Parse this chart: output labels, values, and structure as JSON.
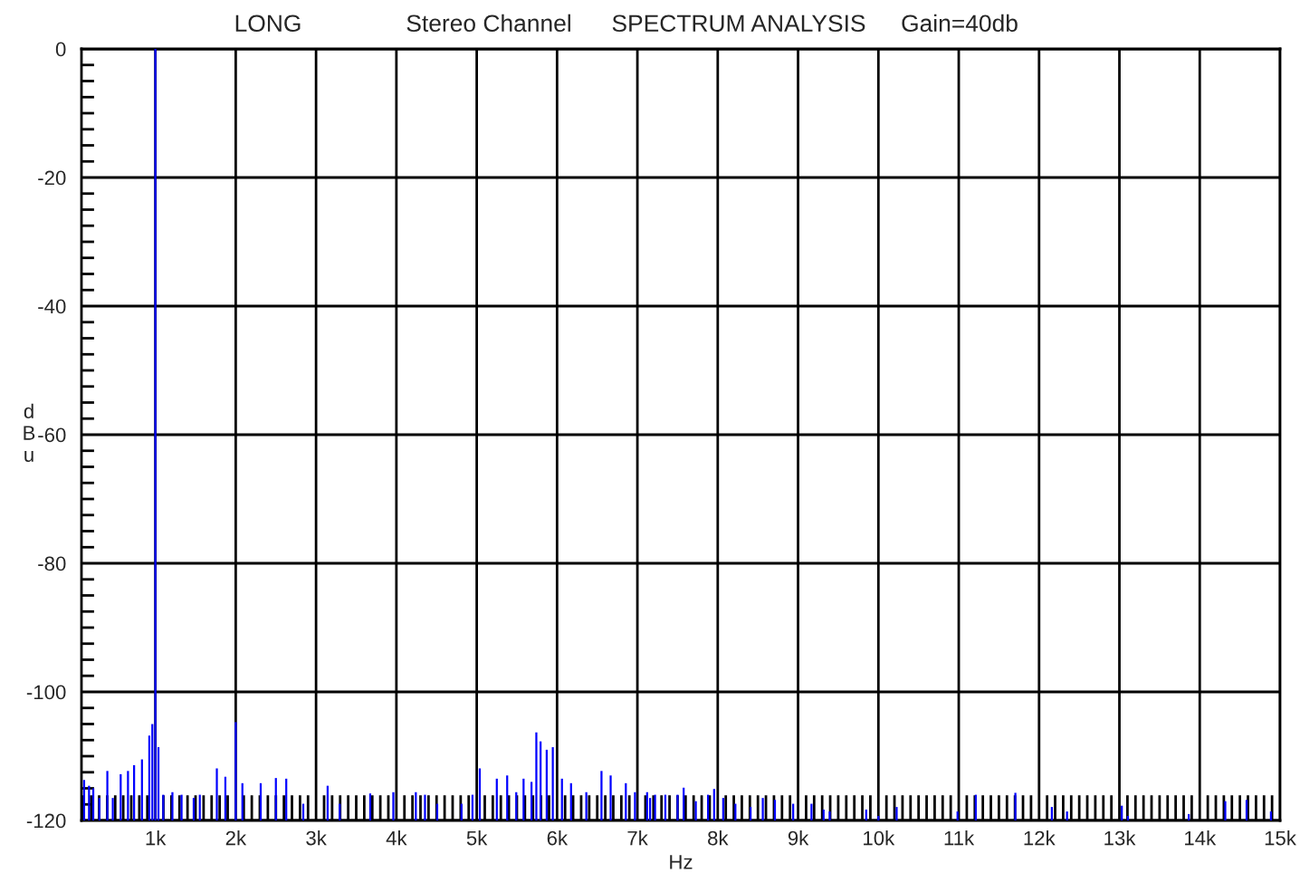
{
  "chart_data": {
    "type": "bar",
    "title": "SPECTRUM ANALYSIS",
    "annotations": [
      "LONG",
      "Stereo Channel",
      "Gain=40db"
    ],
    "xlabel": "Hz",
    "ylabel": "dBu",
    "x": [
      113,
      174,
      227,
      303,
      402,
      470,
      568,
      659,
      735,
      833,
      924,
      962,
      1000,
      1038,
      1098,
      1212,
      1326,
      1477,
      1553,
      1765,
      1871,
      2000,
      2083,
      2311,
      2500,
      2629,
      2841,
      3144,
      3295,
      3674,
      3962,
      4242,
      4356,
      4508,
      4811,
      4947,
      5038,
      5250,
      5379,
      5492,
      5583,
      5682,
      5742,
      5795,
      5871,
      5947,
      6061,
      6174,
      6364,
      6553,
      6667,
      6856,
      6970,
      7121,
      7158,
      7220,
      7348,
      7500,
      7576,
      7727,
      7879,
      7955,
      8068,
      8220,
      8409,
      8561,
      8712,
      8939,
      9167,
      9318,
      9394,
      9848,
      10000,
      10227,
      10985,
      11212,
      11705,
      12159,
      12348,
      13030,
      13106,
      13864,
      14318,
      14583,
      14886
    ],
    "base": [
      -120,
      -120,
      -120,
      -120,
      -120,
      -120,
      -120,
      -120,
      -120,
      -120,
      -120,
      -120,
      -120,
      -120,
      -120,
      -120,
      -120,
      -120,
      -120,
      -120,
      -120,
      -120,
      -120,
      -120,
      -120,
      -120,
      -120,
      -120,
      -120,
      -120,
      -120,
      -120,
      -120,
      -120,
      -120,
      -120,
      -120,
      -120,
      -120,
      -120,
      -120,
      -120,
      -120,
      -120,
      -120,
      -120,
      -120,
      -120,
      -120,
      -120,
      -120,
      -120,
      -120,
      -120,
      -120,
      -120,
      -120,
      -120,
      -120,
      -120,
      -120,
      -120,
      -120,
      -120,
      -120,
      -120,
      -120,
      -120,
      -120,
      -120,
      -120,
      -120,
      -120,
      -120,
      -120,
      -120,
      -120,
      -120,
      -120,
      -120,
      -120,
      -120,
      -120,
      -120,
      -120
    ],
    "values": [
      6.3,
      5.4,
      5,
      3.5,
      7.7,
      3.5,
      7.2,
      7.7,
      8.6,
      9.5,
      13.2,
      15,
      120,
      11.4,
      4,
      4.4,
      4,
      3.5,
      4,
      8.1,
      6.8,
      15.3,
      5.8,
      5.8,
      6.6,
      6.5,
      2.6,
      5.4,
      2.6,
      4.2,
      4.4,
      4.4,
      4,
      2.6,
      2.6,
      4,
      8.1,
      6.5,
      7,
      4.4,
      6.5,
      6,
      13.7,
      12.3,
      11,
      11.4,
      6.5,
      5.8,
      4.4,
      7.7,
      7,
      5.8,
      4.4,
      4.4,
      3.5,
      4,
      4,
      4,
      5.1,
      3,
      4,
      4.9,
      3.5,
      2.6,
      2.1,
      3.5,
      3.2,
      2.6,
      2.6,
      1.7,
      1.4,
      1.7,
      0.7,
      2.1,
      1.4,
      4,
      4.3,
      2.1,
      1.4,
      2.3,
      0.7,
      1,
      3,
      3.2,
      1.4
    ],
    "color": "#0000ff",
    "xlim": [
      80,
      15000
    ],
    "xticks": [
      {
        "value": 100,
        "label": null
      },
      {
        "value": 200,
        "label": null
      },
      {
        "value": 300,
        "label": null
      },
      {
        "value": 400,
        "label": null
      },
      {
        "value": 500,
        "label": null
      },
      {
        "value": 600,
        "label": null
      },
      {
        "value": 700,
        "label": null
      },
      {
        "value": 800,
        "label": null
      },
      {
        "value": 900,
        "label": null
      },
      {
        "value": 1000,
        "label": "1k"
      },
      {
        "value": 1100,
        "label": null
      },
      {
        "value": 1200,
        "label": null
      },
      {
        "value": 1300,
        "label": null
      },
      {
        "value": 1400,
        "label": null
      },
      {
        "value": 1500,
        "label": null
      },
      {
        "value": 1600,
        "label": null
      },
      {
        "value": 1700,
        "label": null
      },
      {
        "value": 1800,
        "label": null
      },
      {
        "value": 1900,
        "label": null
      },
      {
        "value": 2000,
        "label": "2k"
      },
      {
        "value": 2100,
        "label": null
      },
      {
        "value": 2200,
        "label": null
      },
      {
        "value": 2300,
        "label": null
      },
      {
        "value": 2400,
        "label": null
      },
      {
        "value": 2500,
        "label": null
      },
      {
        "value": 2600,
        "label": null
      },
      {
        "value": 2700,
        "label": null
      },
      {
        "value": 2800,
        "label": null
      },
      {
        "value": 2900,
        "label": null
      },
      {
        "value": 3000,
        "label": "3k"
      },
      {
        "value": 3100,
        "label": null
      },
      {
        "value": 3200,
        "label": null
      },
      {
        "value": 3300,
        "label": null
      },
      {
        "value": 3400,
        "label": null
      },
      {
        "value": 3500,
        "label": null
      },
      {
        "value": 3600,
        "label": null
      },
      {
        "value": 3700,
        "label": null
      },
      {
        "value": 3800,
        "label": null
      },
      {
        "value": 3900,
        "label": null
      },
      {
        "value": 4000,
        "label": "4k"
      },
      {
        "value": 4100,
        "label": null
      },
      {
        "value": 4200,
        "label": null
      },
      {
        "value": 4300,
        "label": null
      },
      {
        "value": 4400,
        "label": null
      },
      {
        "value": 4500,
        "label": null
      },
      {
        "value": 4600,
        "label": null
      },
      {
        "value": 4700,
        "label": null
      },
      {
        "value": 4800,
        "label": null
      },
      {
        "value": 4900,
        "label": null
      },
      {
        "value": 5000,
        "label": "5k"
      },
      {
        "value": 5100,
        "label": null
      },
      {
        "value": 5200,
        "label": null
      },
      {
        "value": 5300,
        "label": null
      },
      {
        "value": 5400,
        "label": null
      },
      {
        "value": 5500,
        "label": null
      },
      {
        "value": 5600,
        "label": null
      },
      {
        "value": 5700,
        "label": null
      },
      {
        "value": 5800,
        "label": null
      },
      {
        "value": 5900,
        "label": null
      },
      {
        "value": 6000,
        "label": "6k"
      },
      {
        "value": 6100,
        "label": null
      },
      {
        "value": 6200,
        "label": null
      },
      {
        "value": 6300,
        "label": null
      },
      {
        "value": 6400,
        "label": null
      },
      {
        "value": 6500,
        "label": null
      },
      {
        "value": 6600,
        "label": null
      },
      {
        "value": 6700,
        "label": null
      },
      {
        "value": 6800,
        "label": null
      },
      {
        "value": 6900,
        "label": null
      },
      {
        "value": 7000,
        "label": "7k"
      },
      {
        "value": 7100,
        "label": null
      },
      {
        "value": 7200,
        "label": null
      },
      {
        "value": 7300,
        "label": null
      },
      {
        "value": 7400,
        "label": null
      },
      {
        "value": 7500,
        "label": null
      },
      {
        "value": 7600,
        "label": null
      },
      {
        "value": 7700,
        "label": null
      },
      {
        "value": 7800,
        "label": null
      },
      {
        "value": 7900,
        "label": null
      },
      {
        "value": 8000,
        "label": "8k"
      },
      {
        "value": 8100,
        "label": null
      },
      {
        "value": 8200,
        "label": null
      },
      {
        "value": 8300,
        "label": null
      },
      {
        "value": 8400,
        "label": null
      },
      {
        "value": 8500,
        "label": null
      },
      {
        "value": 8600,
        "label": null
      },
      {
        "value": 8700,
        "label": null
      },
      {
        "value": 8800,
        "label": null
      },
      {
        "value": 8900,
        "label": null
      },
      {
        "value": 9000,
        "label": "9k"
      },
      {
        "value": 9100,
        "label": null
      },
      {
        "value": 9200,
        "label": null
      },
      {
        "value": 9300,
        "label": null
      },
      {
        "value": 9400,
        "label": null
      },
      {
        "value": 9500,
        "label": null
      },
      {
        "value": 9600,
        "label": null
      },
      {
        "value": 9700,
        "label": null
      },
      {
        "value": 9800,
        "label": null
      },
      {
        "value": 9900,
        "label": null
      },
      {
        "value": 10000,
        "label": "10k"
      },
      {
        "value": 10100,
        "label": null
      },
      {
        "value": 10200,
        "label": null
      },
      {
        "value": 10300,
        "label": null
      },
      {
        "value": 10400,
        "label": null
      },
      {
        "value": 10500,
        "label": null
      },
      {
        "value": 10600,
        "label": null
      },
      {
        "value": 10700,
        "label": null
      },
      {
        "value": 10800,
        "label": null
      },
      {
        "value": 10900,
        "label": null
      },
      {
        "value": 11000,
        "label": "11k"
      },
      {
        "value": 11100,
        "label": null
      },
      {
        "value": 11200,
        "label": null
      },
      {
        "value": 11300,
        "label": null
      },
      {
        "value": 11400,
        "label": null
      },
      {
        "value": 11500,
        "label": null
      },
      {
        "value": 11600,
        "label": null
      },
      {
        "value": 11700,
        "label": null
      },
      {
        "value": 11800,
        "label": null
      },
      {
        "value": 11900,
        "label": null
      },
      {
        "value": 12000,
        "label": "12k"
      },
      {
        "value": 12100,
        "label": null
      },
      {
        "value": 12200,
        "label": null
      },
      {
        "value": 12300,
        "label": null
      },
      {
        "value": 12400,
        "label": null
      },
      {
        "value": 12500,
        "label": null
      },
      {
        "value": 12600,
        "label": null
      },
      {
        "value": 12700,
        "label": null
      },
      {
        "value": 12800,
        "label": null
      },
      {
        "value": 12900,
        "label": null
      },
      {
        "value": 13000,
        "label": "13k"
      },
      {
        "value": 13100,
        "label": null
      },
      {
        "value": 13200,
        "label": null
      },
      {
        "value": 13300,
        "label": null
      },
      {
        "value": 13400,
        "label": null
      },
      {
        "value": 13500,
        "label": null
      },
      {
        "value": 13600,
        "label": null
      },
      {
        "value": 13700,
        "label": null
      },
      {
        "value": 13800,
        "label": null
      },
      {
        "value": 13900,
        "label": null
      },
      {
        "value": 14000,
        "label": "14k"
      },
      {
        "value": 14100,
        "label": null
      },
      {
        "value": 14200,
        "label": null
      },
      {
        "value": 14300,
        "label": null
      },
      {
        "value": 14400,
        "label": null
      },
      {
        "value": 14500,
        "label": null
      },
      {
        "value": 14600,
        "label": null
      },
      {
        "value": 14700,
        "label": null
      },
      {
        "value": 14800,
        "label": null
      },
      {
        "value": 14900,
        "label": null
      },
      {
        "value": 15000,
        "label": "15k"
      }
    ],
    "ylim": [
      -120,
      0
    ],
    "yticks": [
      0,
      {
        "value": -2.5,
        "label": null
      },
      {
        "value": -5,
        "label": null
      },
      {
        "value": -7.5,
        "label": null
      },
      {
        "value": -10,
        "label": null
      },
      {
        "value": -12.5,
        "label": null
      },
      {
        "value": -15,
        "label": null
      },
      {
        "value": -17.5,
        "label": null
      },
      -20,
      {
        "value": -22.5,
        "label": null
      },
      {
        "value": -25,
        "label": null
      },
      {
        "value": -27.5,
        "label": null
      },
      {
        "value": -30,
        "label": null
      },
      {
        "value": -32.5,
        "label": null
      },
      {
        "value": -35,
        "label": null
      },
      {
        "value": -37.5,
        "label": null
      },
      -40,
      {
        "value": -42.5,
        "label": null
      },
      {
        "value": -45,
        "label": null
      },
      {
        "value": -47.5,
        "label": null
      },
      {
        "value": -50,
        "label": null
      },
      {
        "value": -52.5,
        "label": null
      },
      {
        "value": -55,
        "label": null
      },
      {
        "value": -57.5,
        "label": null
      },
      -60,
      {
        "value": -62.5,
        "label": null
      },
      {
        "value": -65,
        "label": null
      },
      {
        "value": -67.5,
        "label": null
      },
      {
        "value": -70,
        "label": null
      },
      {
        "value": -72.5,
        "label": null
      },
      {
        "value": -75,
        "label": null
      },
      {
        "value": -77.5,
        "label": null
      },
      -80,
      {
        "value": -82.5,
        "label": null
      },
      {
        "value": -85,
        "label": null
      },
      {
        "value": -87.5,
        "label": null
      },
      {
        "value": -90,
        "label": null
      },
      {
        "value": -92.5,
        "label": null
      },
      {
        "value": -95,
        "label": null
      },
      {
        "value": -97.5,
        "label": null
      },
      -100,
      {
        "value": -102.5,
        "label": null
      },
      {
        "value": -105,
        "label": null
      },
      {
        "value": -107.5,
        "label": null
      },
      {
        "value": -110,
        "label": null
      },
      {
        "value": -112.5,
        "label": null
      },
      {
        "value": -115,
        "label": null
      },
      {
        "value": -117.5,
        "label": null
      },
      -120
    ],
    "grid": true
  }
}
